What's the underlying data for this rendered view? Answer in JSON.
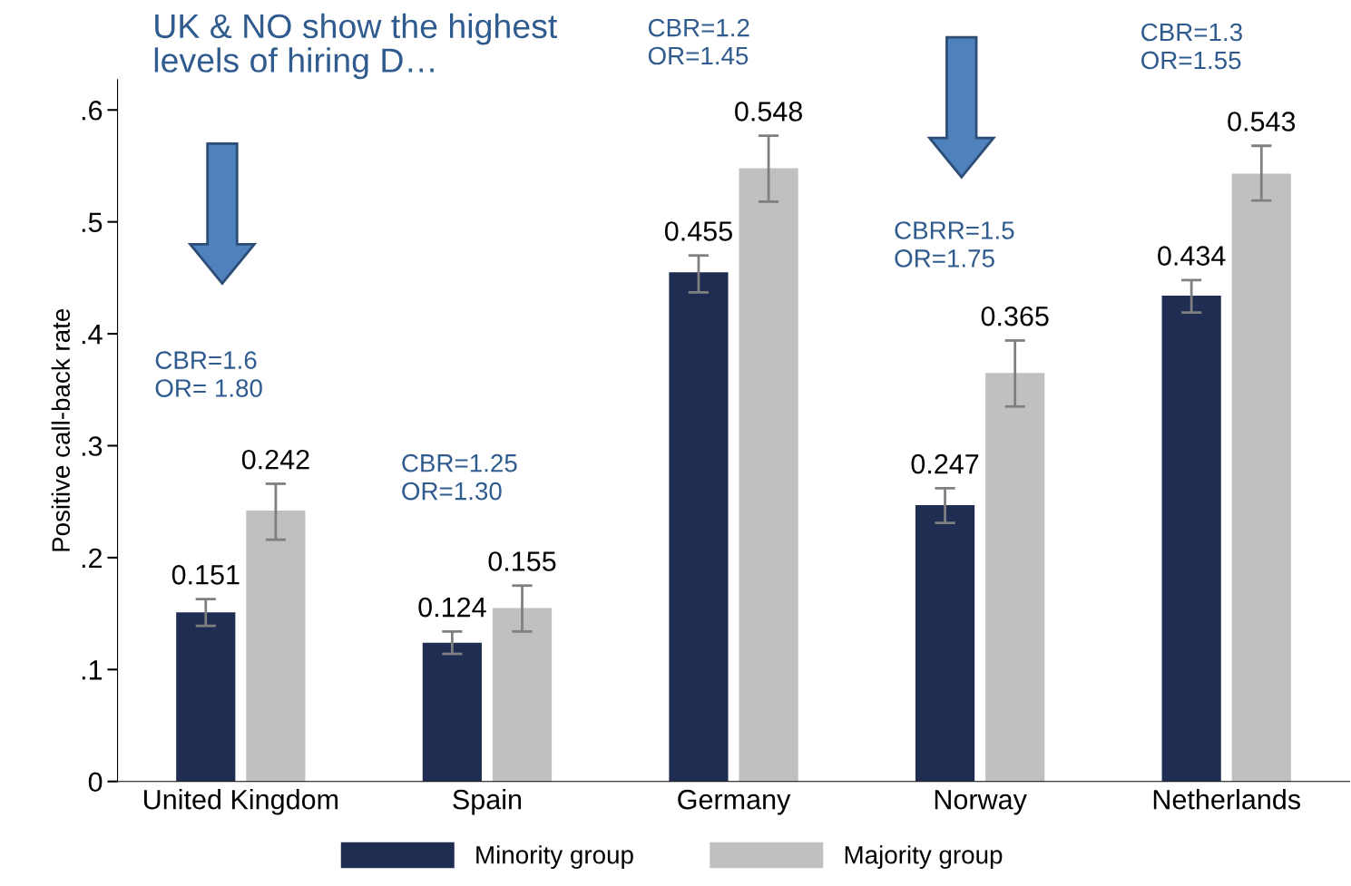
{
  "chart_data": {
    "type": "bar",
    "title": "UK & NO show the highest\nlevels of hiring D…",
    "ylabel": "Positive call-back rate",
    "categories": [
      "United Kingdom",
      "Spain",
      "Germany",
      "Norway",
      "Netherlands"
    ],
    "series": [
      {
        "name": "Minority group",
        "color": "#1f2d52",
        "values": [
          0.151,
          0.124,
          0.455,
          0.247,
          0.434
        ],
        "errors": [
          [
            0.139,
            0.163
          ],
          [
            0.114,
            0.134
          ],
          [
            0.437,
            0.47
          ],
          [
            0.231,
            0.262
          ],
          [
            0.419,
            0.448
          ]
        ]
      },
      {
        "name": "Majority group",
        "color": "#c0c0c0",
        "values": [
          0.242,
          0.155,
          0.548,
          0.365,
          0.543
        ],
        "errors": [
          [
            0.216,
            0.266
          ],
          [
            0.134,
            0.175
          ],
          [
            0.518,
            0.577
          ],
          [
            0.335,
            0.394
          ],
          [
            0.519,
            0.568
          ]
        ]
      }
    ],
    "ylim": [
      0,
      0.627
    ],
    "yticks": [
      0,
      {
        "value": 0.1,
        "label": ".1"
      },
      {
        "value": 0.2,
        "label": ".2"
      },
      {
        "value": 0.3,
        "label": ".3"
      },
      {
        "value": 0.4,
        "label": ".4"
      },
      {
        "value": 0.5,
        "label": ".5"
      },
      {
        "value": 0.6,
        "label": ".6"
      }
    ],
    "data_labels": true,
    "grid": false,
    "legend": "bottom",
    "annotations": [
      "CBR=1.6\nOR= 1.80",
      "CBR=1.25\nOR=1.30",
      "CBR=1.2\nOR=1.45",
      "CBRR=1.5\nOR=1.75",
      "CBR=1.3\nOR=1.55"
    ]
  }
}
